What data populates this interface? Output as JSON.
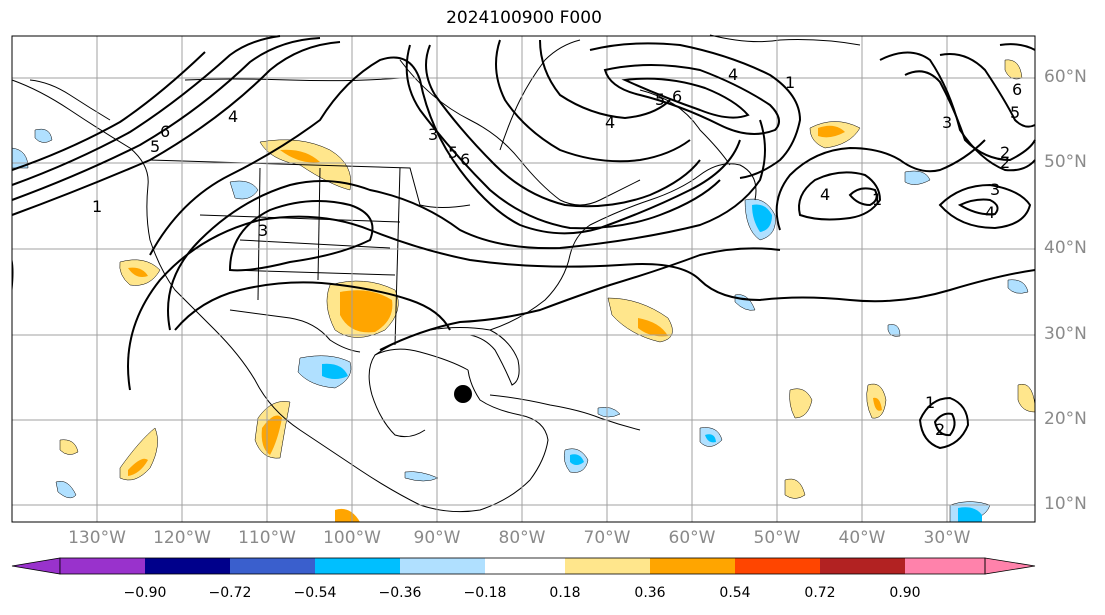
{
  "title": "2024100900 F000",
  "lat_labels": [
    "60°N",
    "50°N",
    "40°N",
    "30°N",
    "20°N",
    "10°N"
  ],
  "lon_labels": [
    "130°W",
    "120°W",
    "110°W",
    "100°W",
    "90°W",
    "80°W",
    "70°W",
    "60°W",
    "50°W",
    "40°W",
    "30°W"
  ],
  "colorbar": {
    "ticks": [
      "−0.90",
      "−0.72",
      "−0.54",
      "−0.36",
      "−0.18",
      "0.18",
      "0.36",
      "0.54",
      "0.72",
      "0.90"
    ],
    "colors": [
      "#9932cc",
      "#00008b",
      "#3a5fcd",
      "#00bfff",
      "#b0e0ff",
      "#ffffff",
      "#ffe68c",
      "#ffa500",
      "#ff4500",
      "#b22222",
      "#ff82ab"
    ]
  },
  "contour_labels": [
    "1",
    "5",
    "6",
    "4",
    "3",
    "3",
    "5",
    "6",
    "4",
    "1",
    "5",
    "6",
    "1",
    "4",
    "3",
    "2",
    "2",
    "4",
    "3",
    "4",
    "5",
    "6",
    "1",
    "2"
  ],
  "colors": {
    "grid": "#a0a0a0",
    "contour": "#000000",
    "pos_light": "#ffe68c",
    "pos_mid": "#ffa500",
    "neg_light": "#b0e0ff",
    "neg_mid": "#00bfff"
  }
}
